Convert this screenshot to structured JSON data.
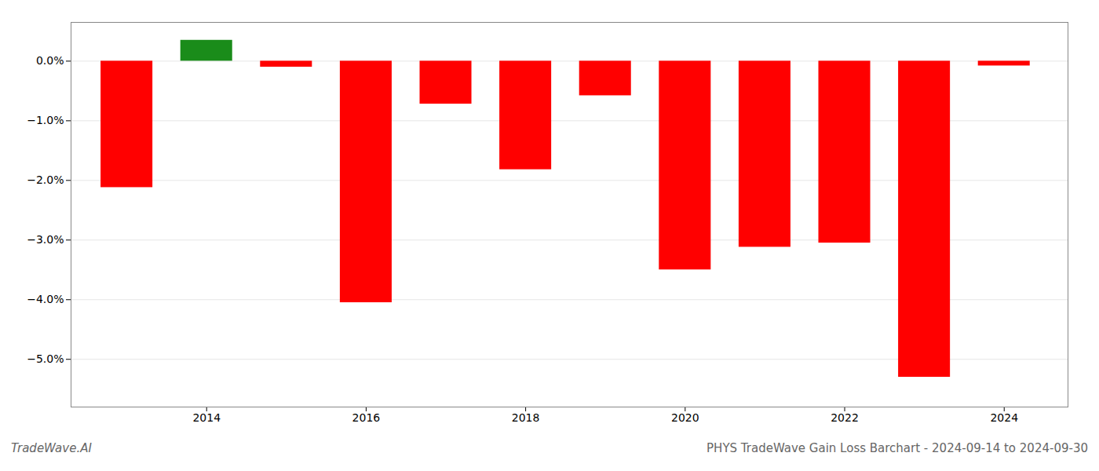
{
  "chart_data": {
    "type": "bar",
    "title": "PHYS TradeWave Gain Loss Barchart - 2024-09-14 to 2024-09-30",
    "annotations": [
      "TradeWave.AI"
    ],
    "x": [
      2013,
      2014,
      2015,
      2016,
      2017,
      2018,
      2019,
      2020,
      2021,
      2022,
      2023,
      2024
    ],
    "values": [
      -2.12,
      0.35,
      -0.1,
      -4.05,
      -0.72,
      -1.82,
      -0.58,
      -3.5,
      -3.12,
      -3.05,
      -5.3,
      -0.08
    ],
    "colors": [
      "#ff0000",
      "#1a8c1a",
      "#ff0000",
      "#ff0000",
      "#ff0000",
      "#ff0000",
      "#ff0000",
      "#ff0000",
      "#ff0000",
      "#ff0000",
      "#ff0000",
      "#ff0000"
    ],
    "xlim": [
      2012.3,
      2024.8
    ],
    "xticks": [
      2014,
      2016,
      2018,
      2020,
      2022,
      2024
    ],
    "ylim": [
      -5.8,
      0.65
    ],
    "yticks": [
      {
        "value": 0.0,
        "label": "0.0%"
      },
      {
        "value": -1.0,
        "label": "−1.0%"
      },
      {
        "value": -2.0,
        "label": "−2.0%"
      },
      {
        "value": -3.0,
        "label": "−3.0%"
      },
      {
        "value": -4.0,
        "label": "−4.0%"
      },
      {
        "value": -5.0,
        "label": "−5.0%"
      }
    ],
    "grid": true
  }
}
